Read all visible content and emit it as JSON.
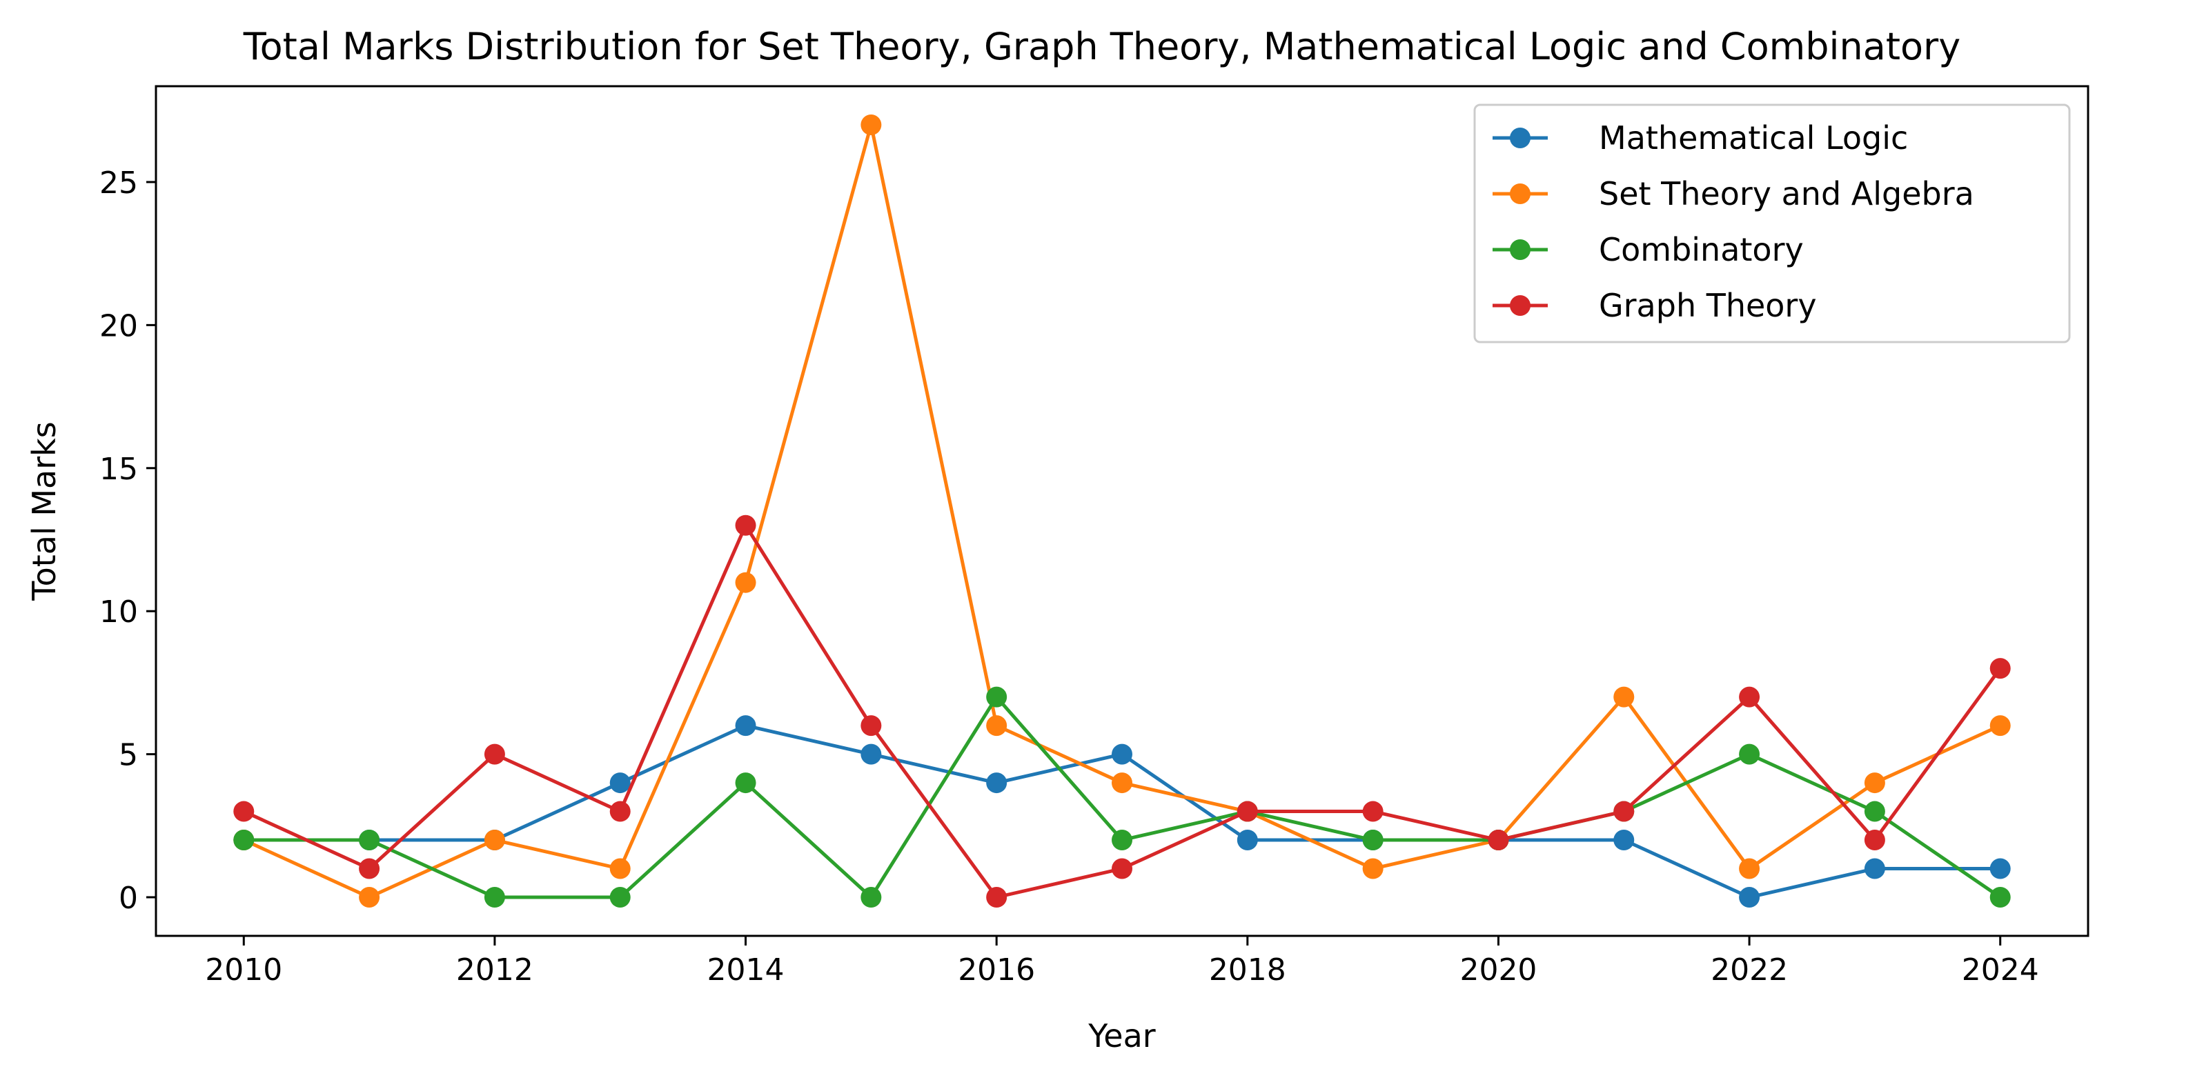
{
  "chart_data": {
    "type": "line",
    "title": "Total Marks Distribution for Set Theory, Graph Theory, Mathematical Logic and Combinatory",
    "xlabel": "Year",
    "ylabel": "Total Marks",
    "x": [
      2010,
      2011,
      2012,
      2013,
      2014,
      2015,
      2016,
      2017,
      2018,
      2019,
      2020,
      2021,
      2022,
      2023,
      2024
    ],
    "xticks": [
      2010,
      2012,
      2014,
      2016,
      2018,
      2020,
      2022,
      2024
    ],
    "yticks": [
      0,
      5,
      10,
      15,
      20,
      25
    ],
    "xlim": [
      2009.3,
      2024.7
    ],
    "ylim": [
      -1.35,
      28.35
    ],
    "grid": false,
    "legend_position": "top-right",
    "series": [
      {
        "name": "Mathematical Logic",
        "color": "#1f77b4",
        "values": [
          2,
          2,
          2,
          4,
          6,
          5,
          4,
          5,
          2,
          2,
          2,
          2,
          0,
          1,
          1
        ]
      },
      {
        "name": "Set Theory and Algebra",
        "color": "#ff7f0e",
        "values": [
          2,
          0,
          2,
          1,
          11,
          27,
          6,
          4,
          3,
          1,
          2,
          7,
          1,
          4,
          6
        ]
      },
      {
        "name": "Combinatory",
        "color": "#2ca02c",
        "values": [
          2,
          2,
          0,
          0,
          4,
          0,
          7,
          2,
          3,
          2,
          2,
          3,
          5,
          3,
          0
        ]
      },
      {
        "name": "Graph Theory",
        "color": "#d62728",
        "values": [
          3,
          1,
          5,
          3,
          13,
          6,
          0,
          1,
          3,
          3,
          2,
          3,
          7,
          2,
          8
        ]
      }
    ]
  }
}
